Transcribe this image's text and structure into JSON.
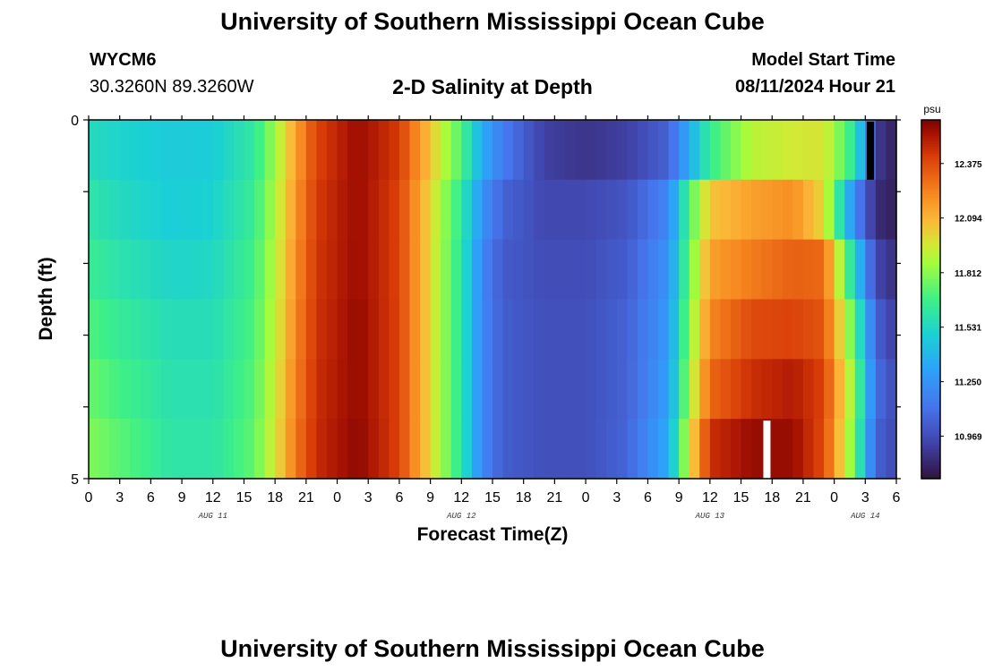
{
  "header": {
    "title": "University of Southern Mississippi Ocean Cube",
    "station": "WYCM6",
    "coords": "30.3260N  89.3260W",
    "chart_title": "2-D Salinity at Depth",
    "start_label": "Model Start Time",
    "start_value": "08/11/2024 Hour 21"
  },
  "footer": {
    "title": "University of Southern Mississippi Ocean Cube"
  },
  "chart_data": {
    "type": "heatmap",
    "title": "2-D Salinity at Depth",
    "xlabel": "Forecast Time(Z)",
    "ylabel": "Depth (ft)",
    "x_tick_labels": [
      "0",
      "3",
      "6",
      "9",
      "12",
      "15",
      "18",
      "21",
      "0",
      "3",
      "6",
      "9",
      "12",
      "15",
      "18",
      "21",
      "0",
      "3",
      "6",
      "9",
      "12",
      "15",
      "18",
      "21",
      "0",
      "3",
      "6"
    ],
    "x_hours_range": [
      0,
      78
    ],
    "date_labels": [
      {
        "text": "AUG 11",
        "hour": 12
      },
      {
        "text": "AUG 12",
        "hour": 36
      },
      {
        "text": "AUG 13",
        "hour": 60
      },
      {
        "text": "AUG 14",
        "hour": 75
      }
    ],
    "y_tick_labels": [
      "0",
      "5"
    ],
    "ylim": [
      0,
      5
    ],
    "y_layers": 6,
    "colorbar": {
      "unit": "psu",
      "ticks": [
        12.375,
        12.094,
        11.812,
        11.531,
        11.25,
        10.969
      ],
      "tick_labels": [
        "12.375",
        "12.094",
        "11.812",
        "11.531",
        "11.250",
        "10.969"
      ],
      "range": [
        10.75,
        12.6
      ]
    },
    "time_keyframes_hours": [
      0,
      4,
      8,
      12,
      16,
      18,
      20,
      22,
      26,
      30,
      33,
      36,
      38,
      40,
      44,
      48,
      52,
      56,
      58,
      60,
      64,
      68,
      71,
      74,
      76,
      78
    ],
    "layers": [
      {
        "depth_index": 0,
        "values": [
          11.55,
          11.5,
          11.47,
          11.48,
          11.62,
          11.85,
          12.15,
          12.4,
          12.55,
          12.42,
          12.05,
          11.7,
          11.35,
          11.15,
          10.92,
          10.88,
          10.92,
          11.05,
          11.35,
          11.65,
          11.9,
          11.95,
          11.97,
          11.6,
          10.9,
          10.8
        ]
      },
      {
        "depth_index": 1,
        "values": [
          11.6,
          11.53,
          11.48,
          11.5,
          11.65,
          11.88,
          12.18,
          12.42,
          12.55,
          12.4,
          12.0,
          11.62,
          11.25,
          11.05,
          10.95,
          10.95,
          11.0,
          11.2,
          11.7,
          12.05,
          12.15,
          12.2,
          12.0,
          11.2,
          10.85,
          10.8
        ]
      },
      {
        "depth_index": 2,
        "values": [
          11.65,
          11.57,
          11.52,
          11.53,
          11.68,
          11.9,
          12.2,
          12.43,
          12.55,
          12.4,
          12.0,
          11.6,
          11.2,
          11.02,
          10.97,
          10.97,
          11.03,
          11.25,
          11.75,
          12.15,
          12.25,
          12.32,
          12.3,
          11.5,
          10.95,
          10.85
        ]
      },
      {
        "depth_index": 3,
        "values": [
          11.7,
          11.62,
          11.56,
          11.56,
          11.7,
          11.92,
          12.22,
          12.44,
          12.56,
          12.4,
          12.0,
          11.6,
          11.2,
          11.03,
          10.98,
          10.98,
          11.05,
          11.28,
          11.8,
          12.22,
          12.38,
          12.4,
          12.35,
          11.7,
          11.05,
          10.9
        ]
      },
      {
        "depth_index": 4,
        "values": [
          11.75,
          11.66,
          11.58,
          11.58,
          11.72,
          11.94,
          12.24,
          12.45,
          12.56,
          12.4,
          12.0,
          11.6,
          11.2,
          11.03,
          10.98,
          10.98,
          11.05,
          11.3,
          11.85,
          12.3,
          12.45,
          12.5,
          12.4,
          11.8,
          11.1,
          10.95
        ]
      },
      {
        "depth_index": 5,
        "values": [
          11.8,
          11.7,
          11.6,
          11.6,
          11.74,
          11.96,
          12.26,
          12.46,
          12.57,
          12.4,
          12.0,
          11.6,
          11.2,
          11.03,
          10.98,
          10.98,
          11.06,
          11.35,
          11.95,
          12.45,
          12.55,
          12.55,
          12.38,
          11.75,
          11.05,
          10.95
        ]
      }
    ],
    "markers": [
      {
        "layer": 0,
        "hour": 75.5,
        "color": "#000000"
      },
      {
        "layer": 5,
        "hour": 65.5,
        "color": "#ffffff"
      }
    ]
  }
}
